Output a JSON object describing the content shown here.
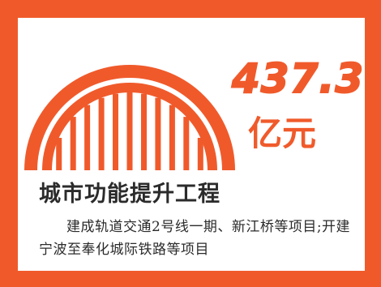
{
  "colors": {
    "accent": "#f05a2b",
    "text": "#2b2b2b"
  },
  "icon": "bridge-arch-icon",
  "headline": {
    "value": "437.3",
    "unit": "亿元"
  },
  "section_title": "城市功能提升工程",
  "description": "建成轨道交通2号线一期、新江桥等项目;开建宁波至奉化城际铁路等项目"
}
